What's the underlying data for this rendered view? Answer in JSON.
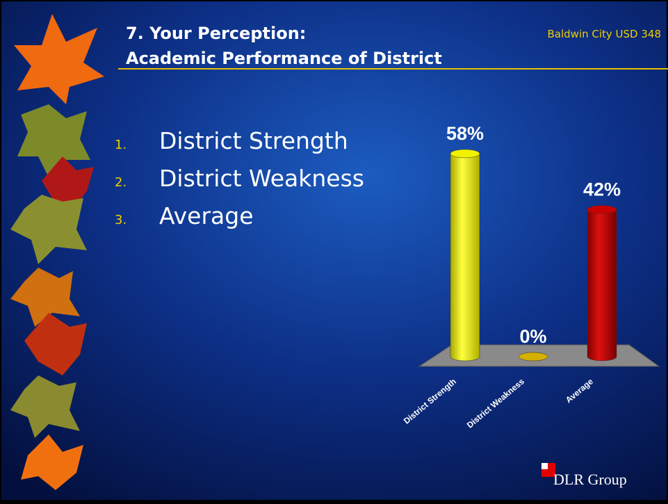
{
  "header": {
    "organization": "Baldwin City USD 348",
    "title": [
      "7. Your Perception:",
      "Academic Performance of District"
    ]
  },
  "list": [
    {
      "number": "1.",
      "text": "District Strength"
    },
    {
      "number": "2.",
      "text": "District Weakness"
    },
    {
      "number": "3.",
      "text": "Average"
    }
  ],
  "chart_data": {
    "type": "bar3d",
    "categories": [
      "District Strength",
      "District Weakness",
      "Average"
    ],
    "values": [
      58,
      0,
      42
    ],
    "value_labels": [
      "58%",
      "0%",
      "42%"
    ],
    "colors": [
      "#f2f200",
      "#d4b000",
      "#c80000"
    ]
  },
  "logo": {
    "text": "DLR Group"
  }
}
